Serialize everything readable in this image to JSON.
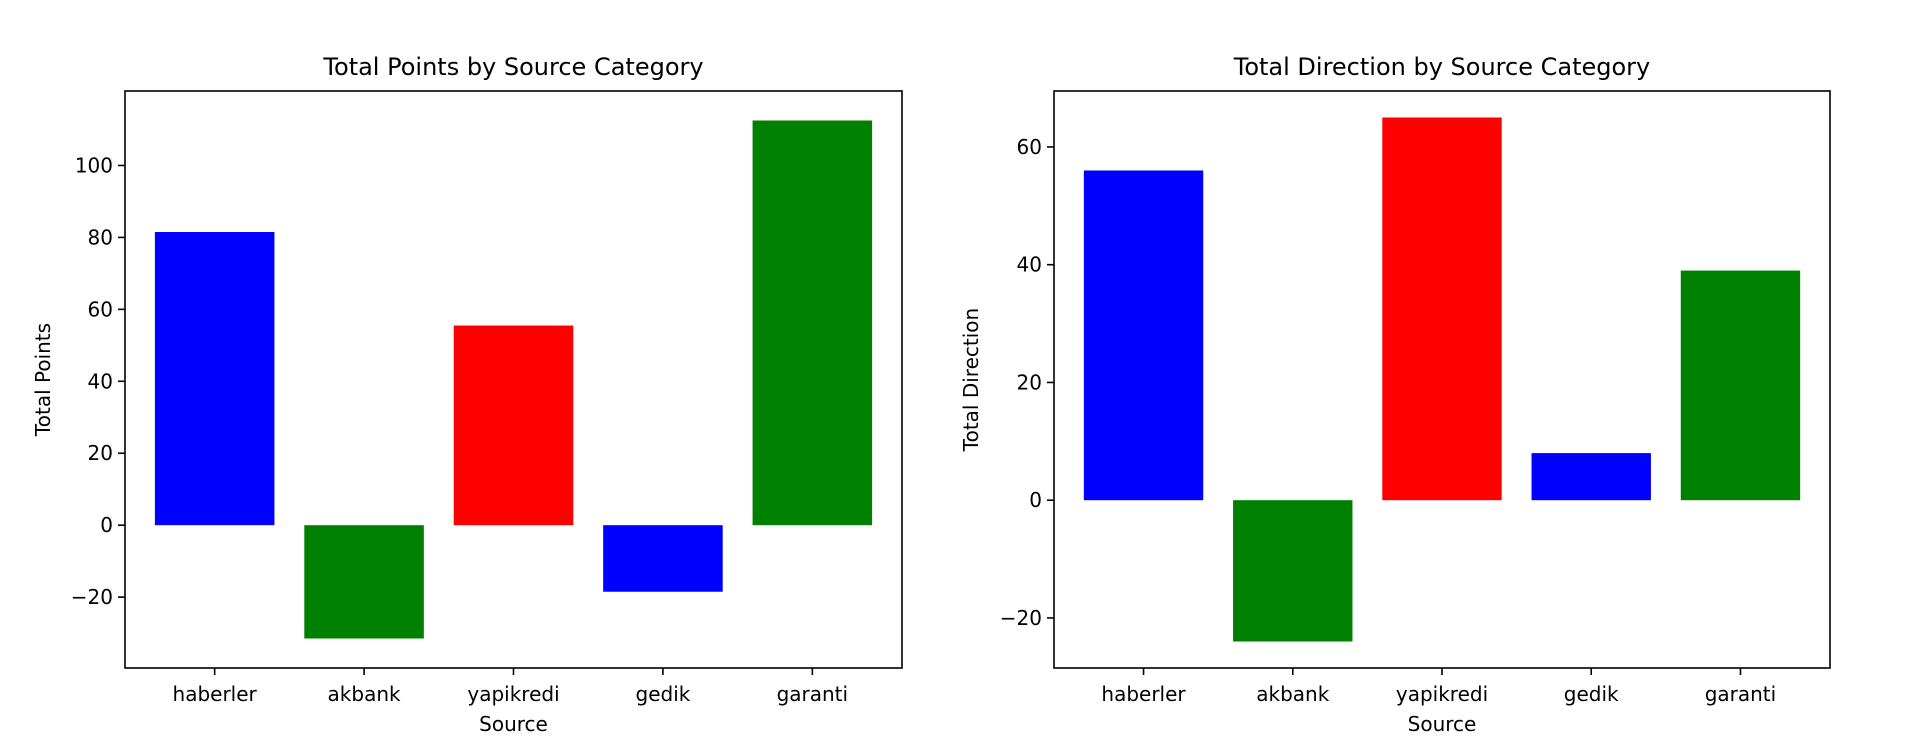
{
  "chart_data": [
    {
      "type": "bar",
      "title": "Total Points by Source Category",
      "xlabel": "Source",
      "ylabel": "Total Points",
      "categories": [
        "haberler",
        "akbank",
        "yapikredi",
        "gedik",
        "garanti"
      ],
      "values": [
        81.5,
        -31.5,
        55.5,
        -18.5,
        112.5
      ],
      "colors": [
        "#0000ff",
        "#008000",
        "#ff0000",
        "#0000ff",
        "#008000"
      ],
      "ylim": [
        -39.7,
        120.7
      ],
      "yticks": [
        -20,
        0,
        20,
        40,
        60,
        80,
        100
      ],
      "ytick_labels": [
        "−20",
        "0",
        "20",
        "40",
        "60",
        "80",
        "100"
      ],
      "grid": false,
      "legend": "none"
    },
    {
      "type": "bar",
      "title": "Total Direction by Source Category",
      "xlabel": "Source",
      "ylabel": "Total Direction",
      "categories": [
        "haberler",
        "akbank",
        "yapikredi",
        "gedik",
        "garanti"
      ],
      "values": [
        56,
        -24,
        65,
        8,
        39
      ],
      "colors": [
        "#0000ff",
        "#008000",
        "#ff0000",
        "#0000ff",
        "#008000"
      ],
      "ylim": [
        -28.5,
        69.5
      ],
      "yticks": [
        -20,
        0,
        20,
        40,
        60
      ],
      "ytick_labels": [
        "−20",
        "0",
        "20",
        "40",
        "60"
      ],
      "grid": false,
      "legend": "none"
    }
  ]
}
